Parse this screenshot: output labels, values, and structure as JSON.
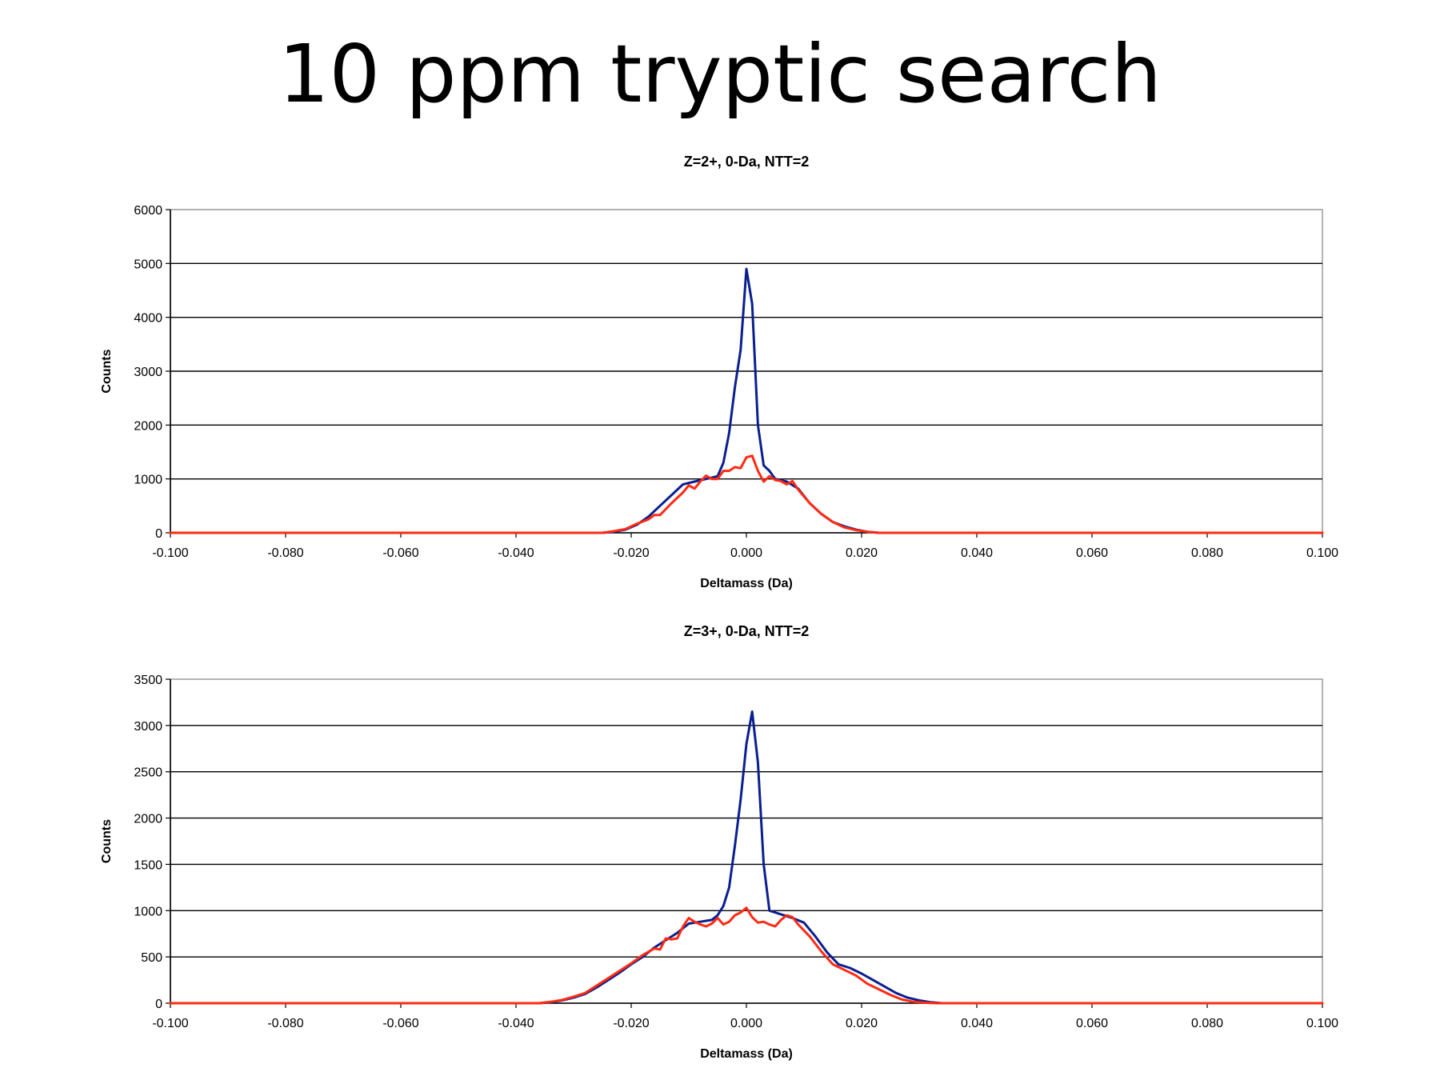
{
  "slide": {
    "title": "10 ppm tryptic search"
  },
  "chart_data": [
    {
      "type": "line",
      "title": "Z=2+, 0-Da, NTT=2",
      "xlabel": "Deltamass (Da)",
      "ylabel": "Counts",
      "xlim": [
        -0.1,
        0.1
      ],
      "ylim": [
        0,
        6000
      ],
      "xticks": [
        "-0.100",
        "-0.080",
        "-0.060",
        "-0.040",
        "-0.020",
        "0.000",
        "0.020",
        "0.040",
        "0.060",
        "0.080",
        "0.100"
      ],
      "yticks": [
        "0",
        "1000",
        "2000",
        "3000",
        "4000",
        "5000",
        "6000"
      ],
      "grid": "horizontal",
      "colors": [
        "#0a1f8f",
        "#ff2a12"
      ],
      "series": [
        {
          "color": "#0a1f8f",
          "x": [
            -0.1,
            -0.025,
            -0.023,
            -0.021,
            -0.019,
            -0.017,
            -0.015,
            -0.013,
            -0.011,
            -0.009,
            -0.007,
            -0.005,
            -0.004,
            -0.003,
            -0.002,
            -0.001,
            0.0,
            0.001,
            0.002,
            0.003,
            0.004,
            0.005,
            0.007,
            0.009,
            0.011,
            0.013,
            0.015,
            0.017,
            0.019,
            0.021,
            0.023,
            0.1
          ],
          "values": [
            0,
            0,
            20,
            60,
            150,
            300,
            500,
            700,
            900,
            950,
            1000,
            1050,
            1300,
            1850,
            2700,
            3400,
            4900,
            4250,
            2000,
            1250,
            1150,
            1000,
            950,
            820,
            550,
            350,
            200,
            120,
            60,
            20,
            0,
            0
          ]
        },
        {
          "color": "#ff2a12",
          "x": [
            -0.1,
            -0.025,
            -0.023,
            -0.021,
            -0.019,
            -0.017,
            -0.016,
            -0.015,
            -0.013,
            -0.011,
            -0.01,
            -0.009,
            -0.008,
            -0.007,
            -0.006,
            -0.005,
            -0.004,
            -0.003,
            -0.002,
            -0.001,
            0.0,
            0.001,
            0.002,
            0.003,
            0.004,
            0.005,
            0.006,
            0.007,
            0.008,
            0.009,
            0.011,
            0.013,
            0.015,
            0.017,
            0.019,
            0.021,
            0.023,
            0.1
          ],
          "values": [
            0,
            0,
            30,
            70,
            170,
            250,
            330,
            330,
            550,
            750,
            880,
            820,
            950,
            1060,
            1000,
            1000,
            1150,
            1150,
            1220,
            1200,
            1400,
            1430,
            1150,
            950,
            1050,
            980,
            960,
            900,
            960,
            800,
            550,
            350,
            200,
            100,
            50,
            20,
            0,
            0
          ]
        }
      ]
    },
    {
      "type": "line",
      "title": "Z=3+, 0-Da, NTT=2",
      "xlabel": "Deltamass (Da)",
      "ylabel": "Counts",
      "xlim": [
        -0.1,
        0.1
      ],
      "ylim": [
        0,
        3500
      ],
      "xticks": [
        "-0.100",
        "-0.080",
        "-0.060",
        "-0.040",
        "-0.020",
        "0.000",
        "0.020",
        "0.040",
        "0.060",
        "0.080",
        "0.100"
      ],
      "yticks": [
        "0",
        "500",
        "1000",
        "1500",
        "2000",
        "2500",
        "3000",
        "3500"
      ],
      "grid": "horizontal",
      "colors": [
        "#0a1f8f",
        "#ff2a12"
      ],
      "series": [
        {
          "color": "#0a1f8f",
          "x": [
            -0.1,
            -0.036,
            -0.034,
            -0.032,
            -0.03,
            -0.028,
            -0.026,
            -0.024,
            -0.022,
            -0.02,
            -0.018,
            -0.016,
            -0.014,
            -0.012,
            -0.01,
            -0.008,
            -0.006,
            -0.005,
            -0.004,
            -0.003,
            -0.002,
            -0.001,
            0.0,
            0.001,
            0.002,
            0.003,
            0.004,
            0.006,
            0.008,
            0.01,
            0.012,
            0.014,
            0.016,
            0.018,
            0.02,
            0.022,
            0.024,
            0.026,
            0.028,
            0.03,
            0.032,
            0.034,
            0.1
          ],
          "values": [
            0,
            0,
            10,
            30,
            60,
            100,
            170,
            250,
            330,
            420,
            500,
            600,
            680,
            760,
            860,
            880,
            900,
            950,
            1050,
            1250,
            1700,
            2200,
            2800,
            3150,
            2600,
            1500,
            1000,
            960,
            920,
            870,
            720,
            550,
            420,
            380,
            320,
            250,
            180,
            110,
            60,
            30,
            10,
            0,
            0
          ]
        },
        {
          "color": "#ff2a12",
          "x": [
            -0.1,
            -0.036,
            -0.034,
            -0.032,
            -0.03,
            -0.028,
            -0.026,
            -0.024,
            -0.022,
            -0.02,
            -0.018,
            -0.016,
            -0.015,
            -0.014,
            -0.013,
            -0.012,
            -0.011,
            -0.01,
            -0.009,
            -0.008,
            -0.007,
            -0.006,
            -0.005,
            -0.004,
            -0.003,
            -0.002,
            -0.001,
            0.0,
            0.001,
            0.002,
            0.003,
            0.004,
            0.005,
            0.006,
            0.007,
            0.008,
            0.009,
            0.011,
            0.013,
            0.015,
            0.017,
            0.019,
            0.021,
            0.023,
            0.025,
            0.027,
            0.029,
            0.031,
            0.033,
            0.1
          ],
          "values": [
            0,
            0,
            15,
            35,
            70,
            110,
            190,
            270,
            350,
            430,
            520,
            590,
            580,
            700,
            690,
            700,
            830,
            920,
            880,
            850,
            830,
            860,
            920,
            850,
            880,
            950,
            980,
            1030,
            930,
            870,
            880,
            850,
            830,
            900,
            950,
            930,
            850,
            720,
            560,
            420,
            360,
            300,
            210,
            150,
            90,
            40,
            15,
            5,
            0,
            0
          ]
        }
      ]
    }
  ]
}
